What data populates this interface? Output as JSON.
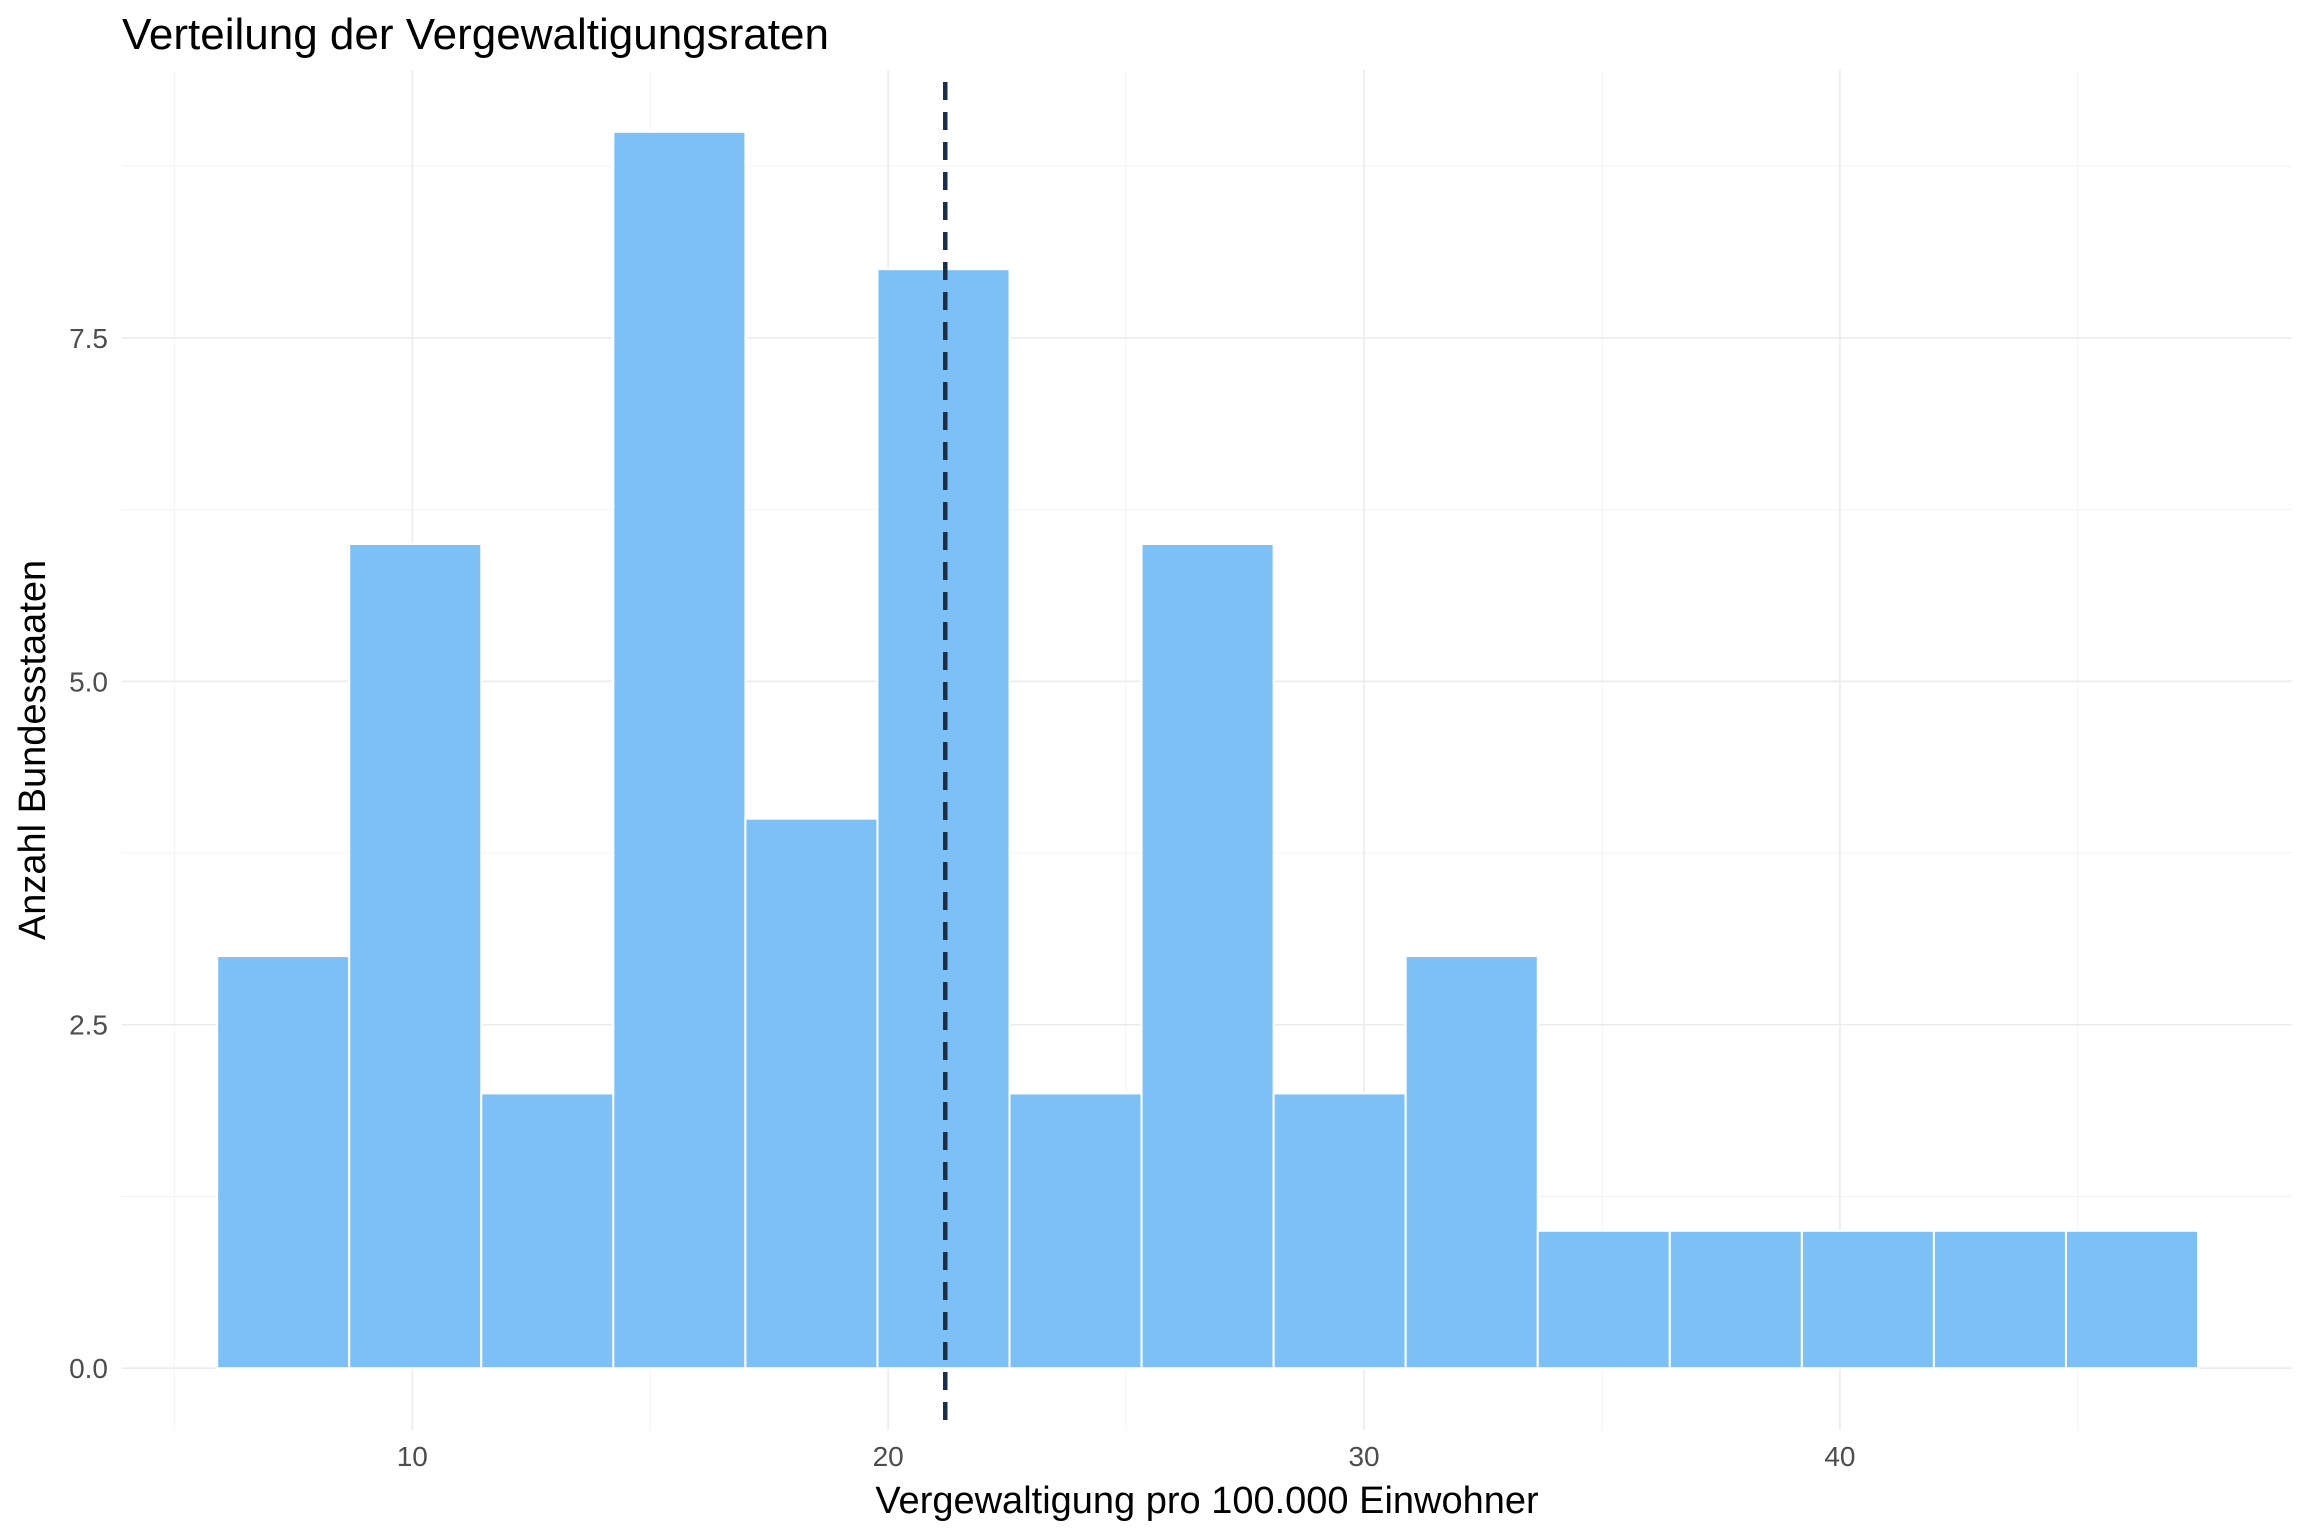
{
  "chart_data": {
    "type": "bar",
    "title": "Verteilung der Vergewaltigungsraten",
    "xlabel": "Vergewaltigung pro 100.000 Einwohner",
    "ylabel": "Anzahl Bundesstaaten",
    "bins": [
      {
        "x0": 5.9,
        "x1": 8.675,
        "count": 3
      },
      {
        "x0": 8.675,
        "x1": 11.45,
        "count": 6
      },
      {
        "x0": 11.45,
        "x1": 14.225,
        "count": 2
      },
      {
        "x0": 14.225,
        "x1": 17.0,
        "count": 9
      },
      {
        "x0": 17.0,
        "x1": 19.775,
        "count": 4
      },
      {
        "x0": 19.775,
        "x1": 22.55,
        "count": 8
      },
      {
        "x0": 22.55,
        "x1": 25.325,
        "count": 2
      },
      {
        "x0": 25.325,
        "x1": 28.1,
        "count": 6
      },
      {
        "x0": 28.1,
        "x1": 30.875,
        "count": 2
      },
      {
        "x0": 30.875,
        "x1": 33.65,
        "count": 3
      },
      {
        "x0": 33.65,
        "x1": 36.425,
        "count": 1
      },
      {
        "x0": 36.425,
        "x1": 39.2,
        "count": 1
      },
      {
        "x0": 39.2,
        "x1": 41.975,
        "count": 1
      },
      {
        "x0": 41.975,
        "x1": 44.75,
        "count": 1
      },
      {
        "x0": 44.75,
        "x1": 47.525,
        "count": 1
      }
    ],
    "mean_line": 21.2,
    "xlim": [
      3.9,
      49.5
    ],
    "ylim": [
      -0.45,
      9.45
    ],
    "x_ticks": [
      10,
      20,
      30,
      40
    ],
    "x_tick_labels": [
      "10",
      "20",
      "30",
      "40"
    ],
    "y_ticks": [
      0,
      2.5,
      5,
      7.5
    ],
    "y_tick_labels": [
      "0.0",
      "2.5",
      "5.0",
      "7.5"
    ],
    "grid": true,
    "legend": "none",
    "colors": {
      "bar_fill": "#7cc0f6",
      "mean_line": "#1c2e45"
    }
  }
}
